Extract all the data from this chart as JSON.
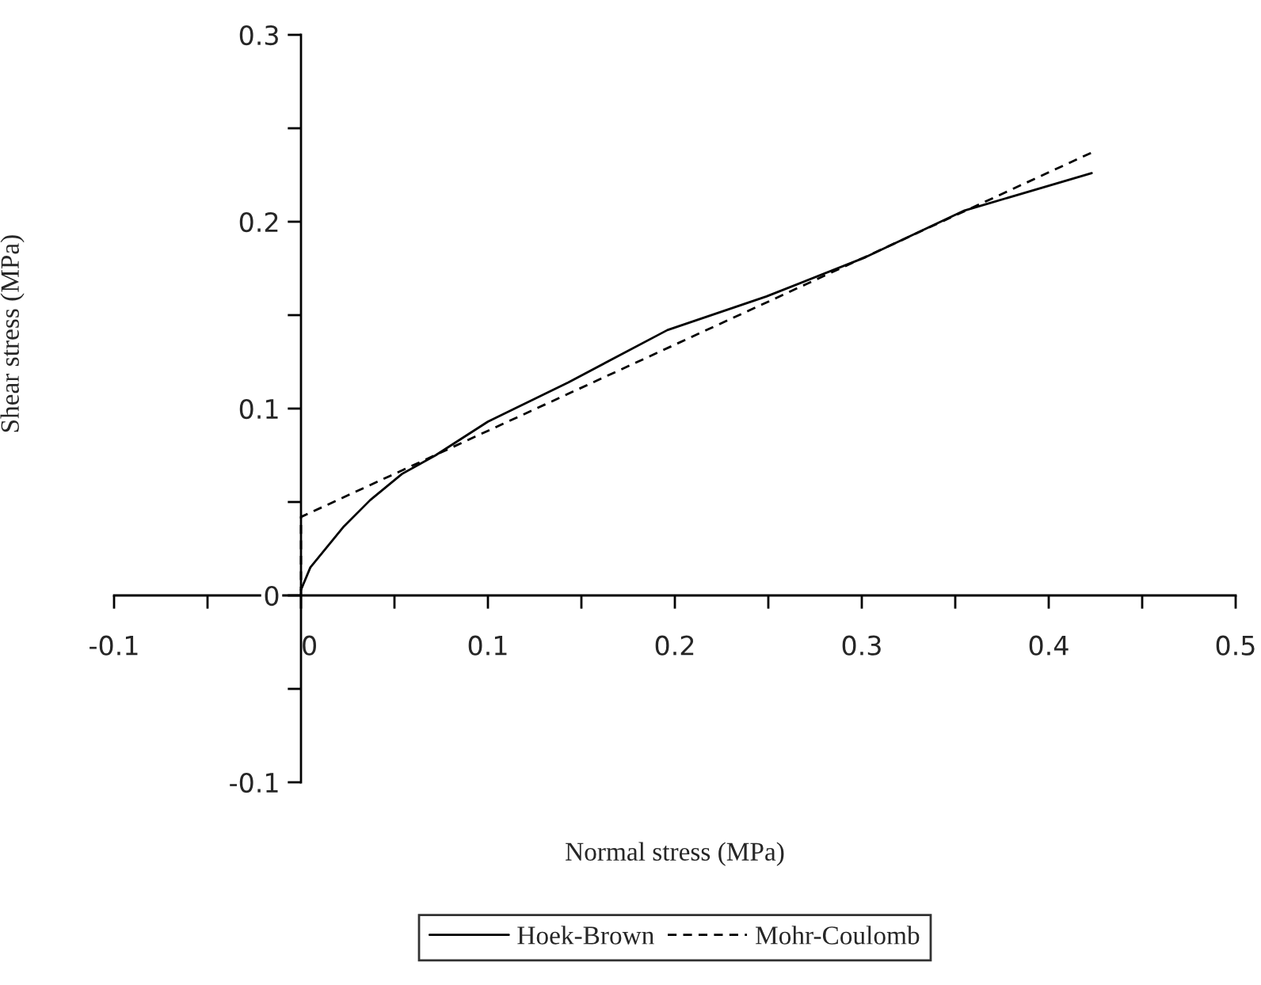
{
  "chart_data": {
    "type": "line",
    "xlabel": "Normal stress (MPa)",
    "ylabel": "Shear stress (MPa)",
    "series": [
      {
        "name": "Hoek-Brown",
        "color": "#000000",
        "line_style": "solid",
        "x": [
          0,
          0.005,
          0.023,
          0.037,
          0.054,
          0.072,
          0.1,
          0.143,
          0.196,
          0.249,
          0.302,
          0.355,
          0.423
        ],
        "values": [
          0.003,
          0.015,
          0.037,
          0.051,
          0.065,
          0.075,
          0.093,
          0.114,
          0.142,
          0.16,
          0.181,
          0.206,
          0.226
        ]
      },
      {
        "name": "Mohr-Coulomb",
        "color": "#000000",
        "line_style": "dashed",
        "x": [
          0,
          0,
          0.423
        ],
        "values": [
          0,
          0.042,
          0.237
        ]
      }
    ],
    "xlim": [
      -0.1,
      0.5
    ],
    "ylim": [
      -0.1,
      0.3
    ],
    "xticks": [
      -0.1,
      {
        "value": -0.05,
        "label": null
      },
      0,
      {
        "value": 0.05,
        "label": null
      },
      0.1,
      {
        "value": 0.15,
        "label": null
      },
      0.2,
      {
        "value": 0.25,
        "label": null
      },
      0.3,
      {
        "value": 0.35,
        "label": null
      },
      0.4,
      {
        "value": 0.45,
        "label": null
      },
      0.5
    ],
    "yticks": [
      -0.1,
      {
        "value": -0.05,
        "label": null
      },
      0,
      {
        "value": 0.05,
        "label": null
      },
      0.1,
      {
        "value": 0.15,
        "label": null
      },
      0.2,
      {
        "value": 0.25,
        "label": null
      },
      0.3
    ],
    "grid": false,
    "legend": "bottom",
    "marker": "none"
  }
}
